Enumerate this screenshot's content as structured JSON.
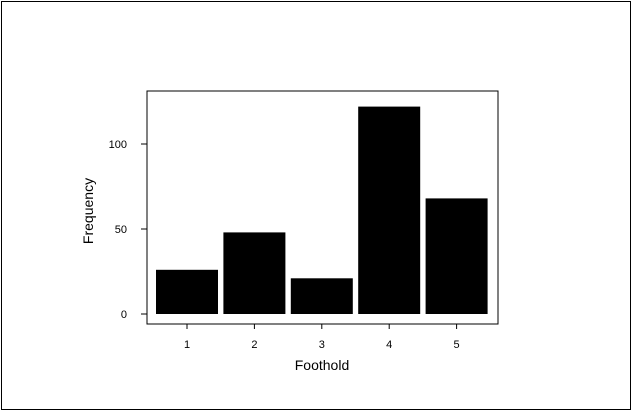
{
  "chart_data": {
    "type": "bar",
    "categories": [
      "1",
      "2",
      "3",
      "4",
      "5"
    ],
    "values": [
      26,
      48,
      21,
      122,
      68
    ],
    "xlabel": "Foothold",
    "ylabel": "Frequency",
    "yticks": [
      "0",
      "50",
      "100"
    ],
    "ylim": [
      -5,
      134
    ],
    "grid": false,
    "bar_color": "#000000"
  }
}
